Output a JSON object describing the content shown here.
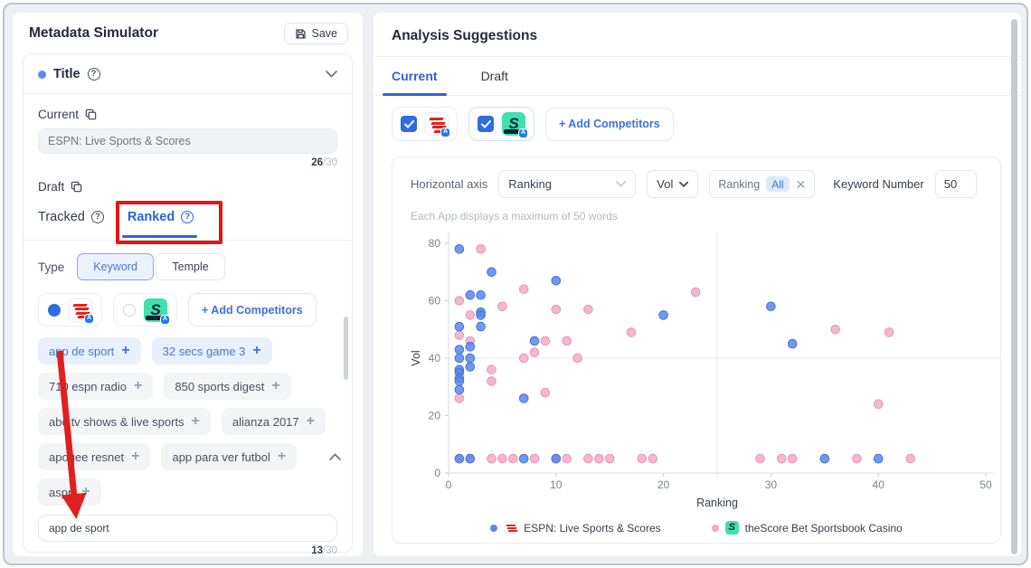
{
  "left_panel": {
    "title": "Metadata Simulator",
    "save_button": {
      "label": "Save"
    },
    "title_section": {
      "label": "Title"
    },
    "current_field": {
      "label": "Current",
      "placeholder": "ESPN: Live Sports & Scores",
      "count": "26",
      "max": "/30"
    },
    "draft_field": {
      "label": "Draft"
    },
    "keyword_tabs": {
      "tracked": "Tracked",
      "ranked": "Ranked"
    },
    "type_row": {
      "label": "Type",
      "keyword": "Keyword",
      "temple": "Temple"
    },
    "competitors": {
      "add_label": "+ Add Competitors"
    },
    "keyword_chips": [
      {
        "label": "app de sport",
        "active": true
      },
      {
        "label": "32 secs game 3",
        "active": true
      },
      {
        "label": "710 espn radio",
        "active": false
      },
      {
        "label": "850 sports digest",
        "active": false
      },
      {
        "label": "abc tv shows & live sports",
        "active": false
      },
      {
        "label": "alianza 2017",
        "active": false
      },
      {
        "label": "apogee resnet",
        "active": false
      },
      {
        "label": "app para ver futbol",
        "active": false
      },
      {
        "label": "aspn",
        "active": false
      }
    ],
    "keyword_input": {
      "value": "app de sport",
      "count": "13",
      "max": "/30"
    }
  },
  "right_panel": {
    "title": "Analysis Suggestions",
    "tabs": {
      "current": "Current",
      "draft": "Draft"
    },
    "competitor_bar": {
      "add_label": "+ Add Competitors"
    },
    "controls": {
      "horizontal_axis_label": "Horizontal axis",
      "axis_select_value": "Ranking",
      "vol_select_value": "Vol",
      "filter_name": "Ranking",
      "filter_value": "All",
      "keyword_number_label": "Keyword Number",
      "keyword_number_value": "50"
    },
    "note": "Each App displays a maximum of 50 words"
  },
  "chart_data": {
    "type": "scatter",
    "xlabel": "Ranking",
    "ylabel": "Vol",
    "xlim": [
      0,
      50
    ],
    "ylim": [
      0,
      80
    ],
    "x_ticks": [
      0,
      10,
      20,
      30,
      40,
      50
    ],
    "y_ticks": [
      0,
      20,
      40,
      60,
      80
    ],
    "grid": {
      "h_line_y": 40,
      "v_line_x": 25
    },
    "series": [
      {
        "name": "theScore Bet Sportsbook Casino",
        "color": "#f2aac6",
        "stroke": "#ec96b8",
        "points": [
          [
            3,
            78
          ],
          [
            7,
            64
          ],
          [
            23,
            63
          ],
          [
            1,
            60
          ],
          [
            5,
            58
          ],
          [
            10,
            57
          ],
          [
            13,
            57
          ],
          [
            2,
            55
          ],
          [
            36,
            50
          ],
          [
            41,
            49
          ],
          [
            17,
            49
          ],
          [
            1,
            48
          ],
          [
            2,
            46
          ],
          [
            9,
            46
          ],
          [
            11,
            46
          ],
          [
            8,
            42
          ],
          [
            7,
            40
          ],
          [
            12,
            40
          ],
          [
            4,
            36
          ],
          [
            4,
            32
          ],
          [
            9,
            28
          ],
          [
            1,
            26
          ],
          [
            40,
            24
          ],
          [
            1,
            5
          ],
          [
            2,
            5
          ],
          [
            4,
            5
          ],
          [
            5,
            5
          ],
          [
            6,
            5
          ],
          [
            8,
            5
          ],
          [
            10,
            5
          ],
          [
            11,
            5
          ],
          [
            13,
            5
          ],
          [
            14,
            5
          ],
          [
            15,
            5
          ],
          [
            18,
            5
          ],
          [
            19,
            5
          ],
          [
            29,
            5
          ],
          [
            31,
            5
          ],
          [
            32,
            5
          ],
          [
            38,
            5
          ],
          [
            43,
            5
          ]
        ]
      },
      {
        "name": "ESPN: Live Sports & Scores",
        "color": "#5b87e8",
        "stroke": "#4273dd",
        "points": [
          [
            1,
            78
          ],
          [
            4,
            70
          ],
          [
            10,
            67
          ],
          [
            2,
            62
          ],
          [
            3,
            62
          ],
          [
            3,
            56
          ],
          [
            3,
            55
          ],
          [
            1,
            51
          ],
          [
            3,
            51
          ],
          [
            20,
            55
          ],
          [
            30,
            58
          ],
          [
            32,
            45
          ],
          [
            8,
            46
          ],
          [
            2,
            44
          ],
          [
            1,
            43
          ],
          [
            2,
            40
          ],
          [
            1,
            40
          ],
          [
            2,
            37
          ],
          [
            1,
            36
          ],
          [
            1,
            35
          ],
          [
            1,
            33
          ],
          [
            1,
            32
          ],
          [
            1,
            29
          ],
          [
            7,
            26
          ],
          [
            1,
            5
          ],
          [
            2,
            5
          ],
          [
            7,
            5
          ],
          [
            10,
            5
          ],
          [
            35,
            5
          ],
          [
            40,
            5
          ]
        ]
      }
    ],
    "legend": [
      {
        "label": "ESPN: Live Sports & Scores",
        "dot": "#5b87e8",
        "icon": "espn"
      },
      {
        "label": "theScore Bet Sportsbook Casino",
        "dot": "#f2aac6",
        "icon": "thescore"
      }
    ]
  }
}
